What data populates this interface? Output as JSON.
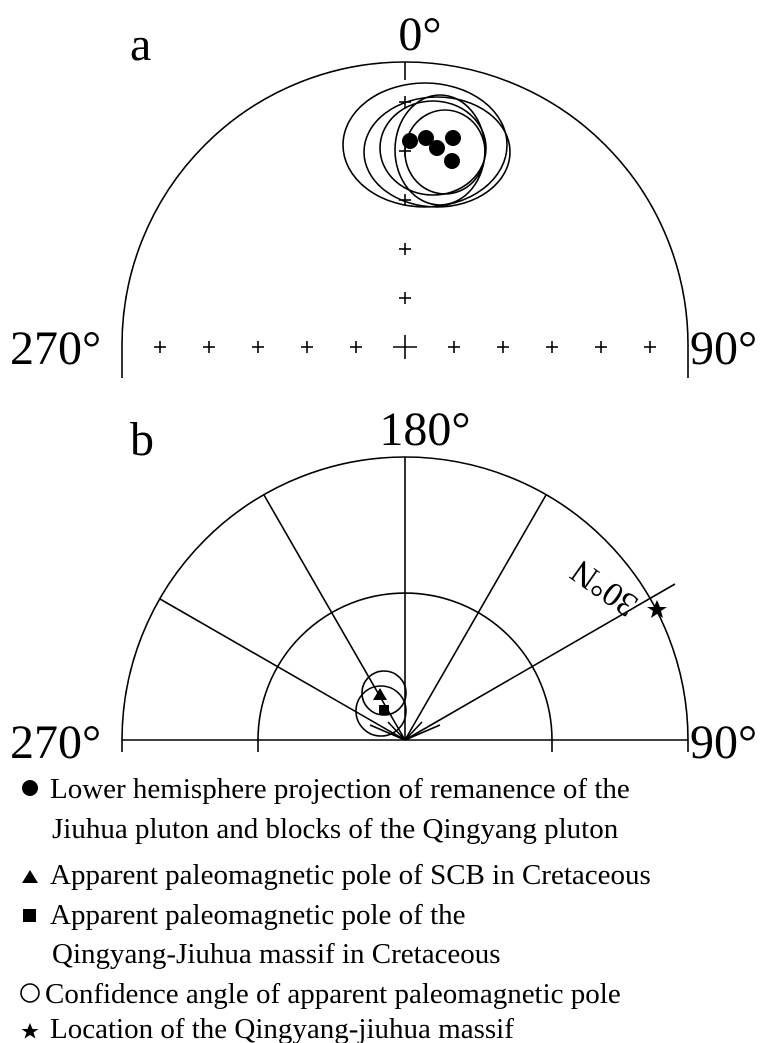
{
  "panels": [
    {
      "label": "a",
      "angles": {
        "top": "0°",
        "left": "270°",
        "right": "90°"
      }
    },
    {
      "label": "b",
      "angles": {
        "top": "180°",
        "left": "270°",
        "right": "90°"
      },
      "annotation": "30°N"
    }
  ],
  "legend": [
    {
      "lines": [
        "Lower hemisphere projection of remanence of the",
        "Jiuhua pluton and blocks of the Qingyang pluton"
      ]
    },
    {
      "lines": [
        "Apparent paleomagnetic pole of SCB in Cretaceous"
      ]
    },
    {
      "lines": [
        "Apparent paleomagnetic pole of the",
        "Qingyang-Jiuhua massif in Cretaceous"
      ]
    },
    {
      "lines": [
        "Confidence angle of apparent paleomagnetic pole"
      ]
    },
    {
      "lines": [
        "Location of the Qingyang-jiuhua massif"
      ]
    }
  ]
}
